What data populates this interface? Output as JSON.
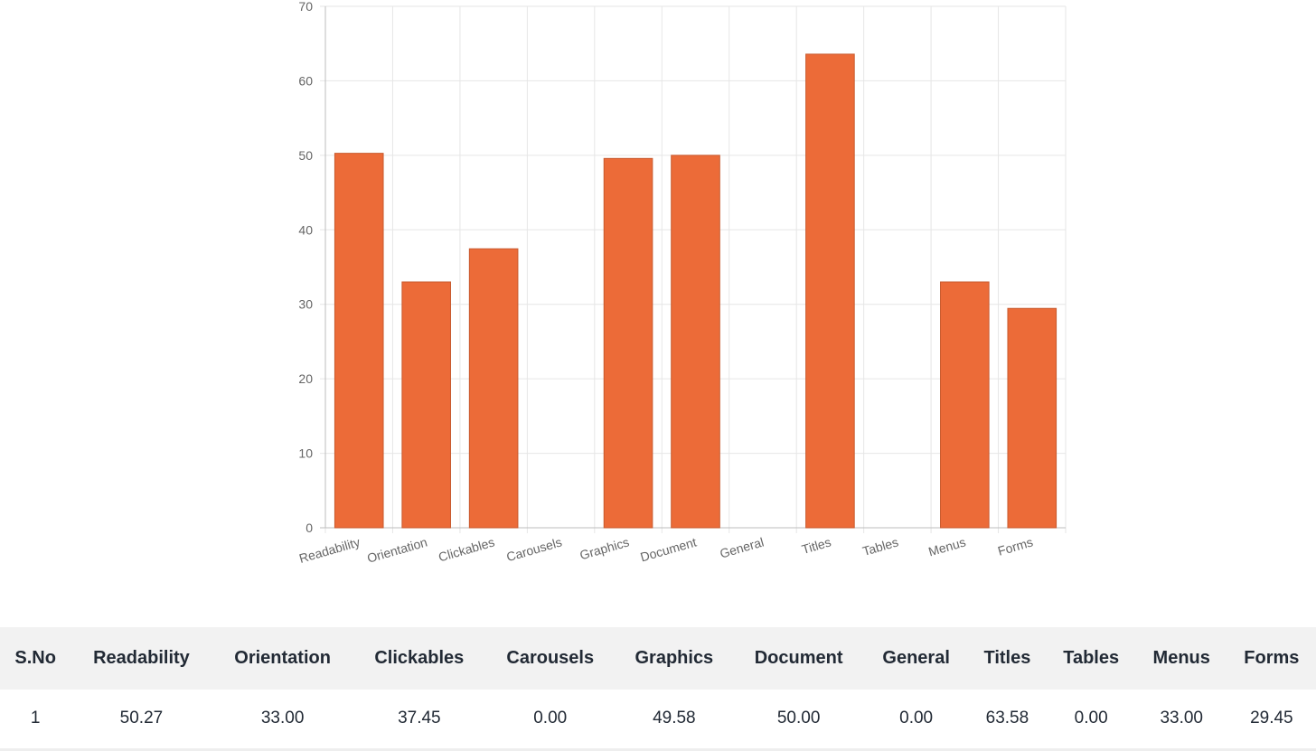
{
  "chart_data": {
    "type": "bar",
    "categories": [
      "Readability",
      "Orientation",
      "Clickables",
      "Carousels",
      "Graphics",
      "Document",
      "General",
      "Titles",
      "Tables",
      "Menus",
      "Forms"
    ],
    "values": [
      50.27,
      33.0,
      37.45,
      0.0,
      49.58,
      50.0,
      0.0,
      63.58,
      0.0,
      33.0,
      29.45
    ],
    "ylim": [
      0,
      70
    ],
    "yticks": [
      0,
      10,
      20,
      30,
      40,
      50,
      60,
      70
    ],
    "title": "",
    "xlabel": "",
    "ylabel": "",
    "grid": true,
    "bar_color": "#ec6b38",
    "bar_border_color": "#c85a2e"
  },
  "table": {
    "headers": [
      "S.No",
      "Readability",
      "Orientation",
      "Clickables",
      "Carousels",
      "Graphics",
      "Document",
      "General",
      "Titles",
      "Tables",
      "Menus",
      "Forms"
    ],
    "rows": [
      [
        "1",
        "50.27",
        "33.00",
        "37.45",
        "0.00",
        "49.58",
        "50.00",
        "0.00",
        "63.58",
        "0.00",
        "33.00",
        "29.45"
      ]
    ]
  }
}
